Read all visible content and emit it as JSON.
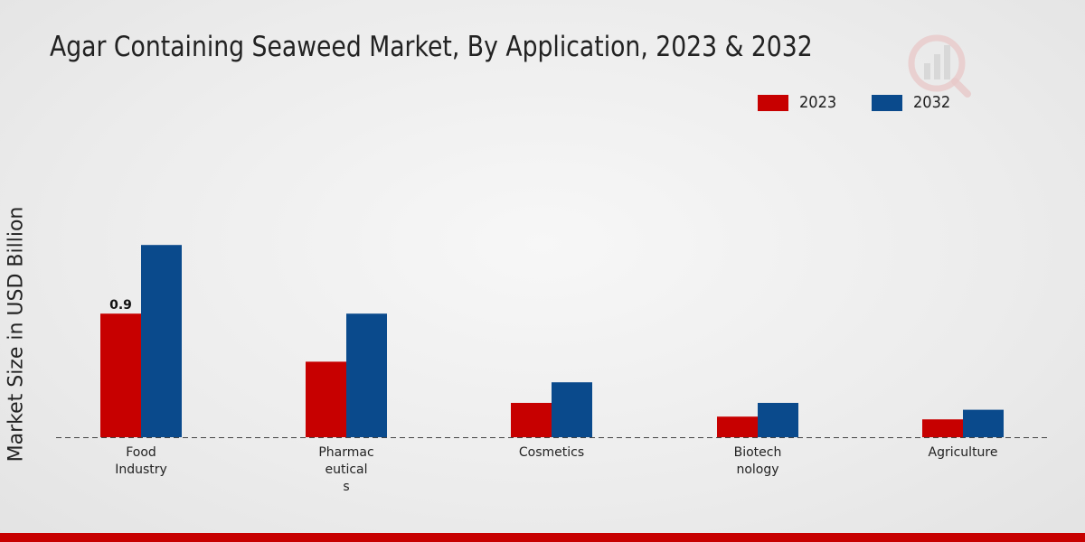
{
  "chart_data": {
    "type": "bar",
    "title": "Agar Containing Seaweed Market, By Application, 2023 & 2032",
    "ylabel": "Market Size in USD Billion",
    "xlabel": "",
    "categories": [
      "Food Industry",
      "Pharmaceuticals",
      "Cosmetics",
      "Biotechnology",
      "Agriculture"
    ],
    "category_labels": [
      "Food\nIndustry",
      "Pharmac\neutical\ns",
      "Cosmetics",
      "Biotech\nnology",
      "Agriculture"
    ],
    "series": [
      {
        "name": "2023",
        "color": "#c70000",
        "values": [
          0.9,
          0.55,
          0.25,
          0.15,
          0.13
        ]
      },
      {
        "name": "2032",
        "color": "#0a4a8c",
        "values": [
          1.4,
          0.9,
          0.4,
          0.25,
          0.2
        ]
      }
    ],
    "data_labels": [
      {
        "series": "2023",
        "category": "Food Industry",
        "text": "0.9"
      }
    ],
    "ylim": [
      0,
      2.6
    ],
    "grid": false,
    "legend": "top-right"
  },
  "colors": {
    "accent": "#c70000",
    "footer": "#c70000"
  }
}
